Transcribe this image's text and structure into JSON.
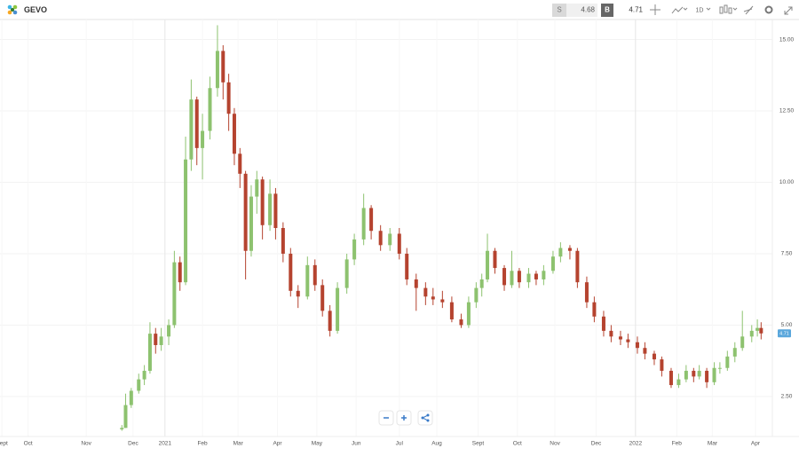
{
  "toolbar": {
    "symbol": "GEVO",
    "sell_label": "S",
    "sell_price": "4.68",
    "buy_label": "B",
    "buy_price": "4.71",
    "interval": "1D"
  },
  "chart_data": {
    "type": "candlestick",
    "up_color": "#8dc26f",
    "down_color": "#b5432f",
    "grid": true,
    "xlim": [
      0,
      412
    ],
    "ylim": [
      1.1,
      15.7
    ],
    "yticks": [
      {
        "value": 2.5,
        "label": "2.50"
      },
      {
        "value": 5,
        "label": "5.00"
      },
      {
        "value": 7.5,
        "label": "7.50"
      },
      {
        "value": 10,
        "label": "10.00"
      },
      {
        "value": 12.5,
        "label": "12.50"
      },
      {
        "value": 15,
        "label": "15.00"
      }
    ],
    "xticks": [
      {
        "value": 1,
        "label": "Sept"
      },
      {
        "value": 15,
        "label": "Oct"
      },
      {
        "value": 46,
        "label": "Nov"
      },
      {
        "value": 71,
        "label": "Dec"
      },
      {
        "value": 88,
        "label": "2021"
      },
      {
        "value": 108,
        "label": "Feb"
      },
      {
        "value": 127,
        "label": "Mar"
      },
      {
        "value": 148,
        "label": "Apr"
      },
      {
        "value": 169,
        "label": "May"
      },
      {
        "value": 190,
        "label": "Jun"
      },
      {
        "value": 213,
        "label": "Jul"
      },
      {
        "value": 233,
        "label": "Aug"
      },
      {
        "value": 255,
        "label": "Sept"
      },
      {
        "value": 276,
        "label": "Oct"
      },
      {
        "value": 296,
        "label": "Nov"
      },
      {
        "value": 318,
        "label": "Dec"
      },
      {
        "value": 339,
        "label": "2022"
      },
      {
        "value": 361,
        "label": "Feb"
      },
      {
        "value": 380,
        "label": "Mar"
      },
      {
        "value": 403,
        "label": "Apr"
      }
    ],
    "last_price": 4.71,
    "candles": [
      {
        "x": 65,
        "open": 1.35,
        "high": 1.5,
        "low": 1.3,
        "close": 1.4
      },
      {
        "x": 67,
        "open": 1.4,
        "high": 2.6,
        "low": 1.4,
        "close": 2.2
      },
      {
        "x": 70,
        "open": 2.2,
        "high": 2.8,
        "low": 2.1,
        "close": 2.7
      },
      {
        "x": 74,
        "open": 2.7,
        "high": 3.3,
        "low": 2.6,
        "close": 3.1
      },
      {
        "x": 77,
        "open": 3.1,
        "high": 3.6,
        "low": 2.9,
        "close": 3.4
      },
      {
        "x": 80,
        "open": 3.4,
        "high": 5.1,
        "low": 3.3,
        "close": 4.7
      },
      {
        "x": 83,
        "open": 4.7,
        "high": 4.9,
        "low": 4.0,
        "close": 4.3
      },
      {
        "x": 86,
        "open": 4.3,
        "high": 4.9,
        "low": 4.1,
        "close": 4.6
      },
      {
        "x": 90,
        "open": 4.6,
        "high": 5.2,
        "low": 4.3,
        "close": 5.0
      },
      {
        "x": 93,
        "open": 5.0,
        "high": 7.6,
        "low": 4.9,
        "close": 7.2
      },
      {
        "x": 96,
        "open": 7.2,
        "high": 7.4,
        "low": 6.2,
        "close": 6.5
      },
      {
        "x": 99,
        "open": 6.5,
        "high": 11.6,
        "low": 6.4,
        "close": 10.8
      },
      {
        "x": 102,
        "open": 10.8,
        "high": 13.6,
        "low": 10.4,
        "close": 12.9
      },
      {
        "x": 105,
        "open": 12.9,
        "high": 13.0,
        "low": 10.6,
        "close": 11.2
      },
      {
        "x": 108,
        "open": 11.2,
        "high": 12.4,
        "low": 10.1,
        "close": 11.8
      },
      {
        "x": 112,
        "open": 11.8,
        "high": 13.7,
        "low": 11.5,
        "close": 13.3
      },
      {
        "x": 116,
        "open": 13.3,
        "high": 15.5,
        "low": 13.0,
        "close": 14.6
      },
      {
        "x": 119,
        "open": 14.6,
        "high": 14.8,
        "low": 12.9,
        "close": 13.5
      },
      {
        "x": 122,
        "open": 13.5,
        "high": 13.8,
        "low": 11.8,
        "close": 12.4
      },
      {
        "x": 125,
        "open": 12.4,
        "high": 12.6,
        "low": 10.6,
        "close": 11.0
      },
      {
        "x": 128,
        "open": 11.0,
        "high": 11.2,
        "low": 9.8,
        "close": 10.3
      },
      {
        "x": 131,
        "open": 10.3,
        "high": 10.4,
        "low": 6.6,
        "close": 7.6
      },
      {
        "x": 134,
        "open": 7.6,
        "high": 9.9,
        "low": 7.4,
        "close": 9.5
      },
      {
        "x": 137,
        "open": 9.5,
        "high": 10.4,
        "low": 8.9,
        "close": 10.1
      },
      {
        "x": 140,
        "open": 10.1,
        "high": 10.2,
        "low": 8.0,
        "close": 8.5
      },
      {
        "x": 144,
        "open": 8.5,
        "high": 10.1,
        "low": 8.3,
        "close": 9.6
      },
      {
        "x": 147,
        "open": 9.6,
        "high": 9.8,
        "low": 8.0,
        "close": 8.4
      },
      {
        "x": 151,
        "open": 8.4,
        "high": 8.6,
        "low": 7.2,
        "close": 7.5
      },
      {
        "x": 155,
        "open": 7.5,
        "high": 7.7,
        "low": 6.0,
        "close": 6.2
      },
      {
        "x": 159,
        "open": 6.2,
        "high": 6.4,
        "low": 5.6,
        "close": 6.0
      },
      {
        "x": 164,
        "open": 6.0,
        "high": 7.4,
        "low": 5.9,
        "close": 7.1
      },
      {
        "x": 168,
        "open": 7.1,
        "high": 7.3,
        "low": 6.2,
        "close": 6.4
      },
      {
        "x": 172,
        "open": 6.4,
        "high": 6.6,
        "low": 5.3,
        "close": 5.5
      },
      {
        "x": 176,
        "open": 5.5,
        "high": 5.7,
        "low": 4.6,
        "close": 4.8
      },
      {
        "x": 180,
        "open": 4.8,
        "high": 6.5,
        "low": 4.7,
        "close": 6.3
      },
      {
        "x": 185,
        "open": 6.3,
        "high": 7.5,
        "low": 6.1,
        "close": 7.3
      },
      {
        "x": 189,
        "open": 7.3,
        "high": 8.2,
        "low": 7.1,
        "close": 8.0
      },
      {
        "x": 194,
        "open": 8.0,
        "high": 9.6,
        "low": 7.8,
        "close": 9.1
      },
      {
        "x": 198,
        "open": 9.1,
        "high": 9.2,
        "low": 8.0,
        "close": 8.3
      },
      {
        "x": 203,
        "open": 8.3,
        "high": 8.5,
        "low": 7.6,
        "close": 7.8
      },
      {
        "x": 208,
        "open": 7.8,
        "high": 8.4,
        "low": 7.6,
        "close": 8.2
      },
      {
        "x": 213,
        "open": 8.2,
        "high": 8.4,
        "low": 7.3,
        "close": 7.5
      },
      {
        "x": 217,
        "open": 7.5,
        "high": 7.7,
        "low": 6.4,
        "close": 6.6
      },
      {
        "x": 222,
        "open": 6.6,
        "high": 6.8,
        "low": 5.5,
        "close": 6.3
      },
      {
        "x": 227,
        "open": 6.3,
        "high": 6.5,
        "low": 5.7,
        "close": 6.0
      },
      {
        "x": 231,
        "open": 6.0,
        "high": 6.3,
        "low": 5.7,
        "close": 5.9
      },
      {
        "x": 236,
        "open": 5.9,
        "high": 6.2,
        "low": 5.6,
        "close": 5.8
      },
      {
        "x": 241,
        "open": 5.8,
        "high": 6.0,
        "low": 5.1,
        "close": 5.2
      },
      {
        "x": 246,
        "open": 5.2,
        "high": 5.4,
        "low": 4.9,
        "close": 5.0
      },
      {
        "x": 250,
        "open": 5.0,
        "high": 6.0,
        "low": 4.9,
        "close": 5.8
      },
      {
        "x": 254,
        "open": 5.8,
        "high": 6.5,
        "low": 5.6,
        "close": 6.3
      },
      {
        "x": 257,
        "open": 6.3,
        "high": 6.8,
        "low": 6.0,
        "close": 6.6
      },
      {
        "x": 260,
        "open": 6.6,
        "high": 8.2,
        "low": 6.5,
        "close": 7.6
      },
      {
        "x": 264,
        "open": 7.6,
        "high": 7.7,
        "low": 6.8,
        "close": 7.0
      },
      {
        "x": 269,
        "open": 7.0,
        "high": 7.1,
        "low": 6.2,
        "close": 6.4
      },
      {
        "x": 273,
        "open": 6.4,
        "high": 7.6,
        "low": 6.3,
        "close": 6.9
      },
      {
        "x": 277,
        "open": 6.9,
        "high": 7.0,
        "low": 6.3,
        "close": 6.5
      },
      {
        "x": 282,
        "open": 6.5,
        "high": 7.0,
        "low": 6.3,
        "close": 6.8
      },
      {
        "x": 286,
        "open": 6.8,
        "high": 6.9,
        "low": 6.4,
        "close": 6.6
      },
      {
        "x": 290,
        "open": 6.6,
        "high": 7.1,
        "low": 6.4,
        "close": 6.9
      },
      {
        "x": 295,
        "open": 6.9,
        "high": 7.6,
        "low": 6.8,
        "close": 7.4
      },
      {
        "x": 299,
        "open": 7.4,
        "high": 7.9,
        "low": 7.2,
        "close": 7.7
      },
      {
        "x": 304,
        "open": 7.7,
        "high": 7.8,
        "low": 7.3,
        "close": 7.6
      },
      {
        "x": 308,
        "open": 7.6,
        "high": 7.7,
        "low": 6.3,
        "close": 6.5
      },
      {
        "x": 313,
        "open": 6.5,
        "high": 6.7,
        "low": 5.6,
        "close": 5.8
      },
      {
        "x": 317,
        "open": 5.8,
        "high": 6.0,
        "low": 5.1,
        "close": 5.3
      },
      {
        "x": 322,
        "open": 5.3,
        "high": 5.5,
        "low": 4.6,
        "close": 4.8
      },
      {
        "x": 326,
        "open": 4.8,
        "high": 5.0,
        "low": 4.4,
        "close": 4.6
      },
      {
        "x": 331,
        "open": 4.6,
        "high": 4.8,
        "low": 4.3,
        "close": 4.5
      },
      {
        "x": 335,
        "open": 4.5,
        "high": 4.7,
        "low": 4.2,
        "close": 4.4
      },
      {
        "x": 340,
        "open": 4.4,
        "high": 4.6,
        "low": 4.0,
        "close": 4.2
      },
      {
        "x": 344,
        "open": 4.2,
        "high": 4.4,
        "low": 3.8,
        "close": 4.0
      },
      {
        "x": 349,
        "open": 4.0,
        "high": 4.1,
        "low": 3.6,
        "close": 3.8
      },
      {
        "x": 353,
        "open": 3.8,
        "high": 3.9,
        "low": 3.2,
        "close": 3.4
      },
      {
        "x": 358,
        "open": 3.4,
        "high": 3.5,
        "low": 2.8,
        "close": 2.9
      },
      {
        "x": 362,
        "open": 2.9,
        "high": 3.3,
        "low": 2.8,
        "close": 3.1
      },
      {
        "x": 366,
        "open": 3.1,
        "high": 3.6,
        "low": 3.0,
        "close": 3.4
      },
      {
        "x": 370,
        "open": 3.4,
        "high": 3.5,
        "low": 3.0,
        "close": 3.2
      },
      {
        "x": 373,
        "open": 3.2,
        "high": 3.6,
        "low": 3.1,
        "close": 3.4
      },
      {
        "x": 377,
        "open": 3.4,
        "high": 3.5,
        "low": 2.8,
        "close": 3.0
      },
      {
        "x": 381,
        "open": 3.0,
        "high": 3.7,
        "low": 2.9,
        "close": 3.5
      },
      {
        "x": 384,
        "open": 3.5,
        "high": 3.7,
        "low": 3.3,
        "close": 3.5
      },
      {
        "x": 388,
        "open": 3.5,
        "high": 4.1,
        "low": 3.4,
        "close": 3.9
      },
      {
        "x": 392,
        "open": 3.9,
        "high": 4.4,
        "low": 3.7,
        "close": 4.2
      },
      {
        "x": 396,
        "open": 4.2,
        "high": 5.5,
        "low": 4.1,
        "close": 4.6
      },
      {
        "x": 401,
        "open": 4.6,
        "high": 5.0,
        "low": 4.4,
        "close": 4.8
      },
      {
        "x": 404,
        "open": 4.8,
        "high": 5.2,
        "low": 4.6,
        "close": 4.9
      },
      {
        "x": 406,
        "open": 4.9,
        "high": 5.1,
        "low": 4.5,
        "close": 4.71
      }
    ]
  }
}
